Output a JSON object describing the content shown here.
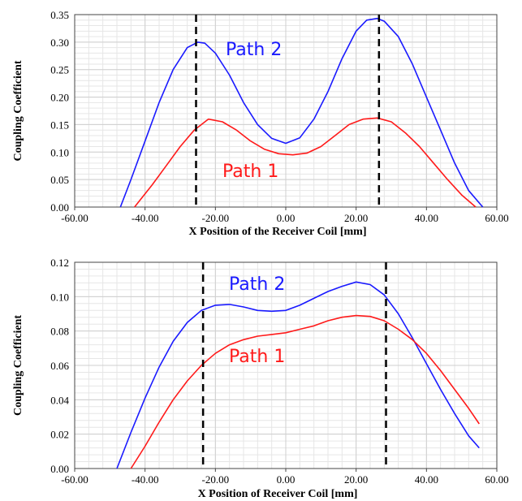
{
  "chart_data": [
    {
      "type": "line",
      "xlabel": "X Position of the Receiver Coil [mm]",
      "ylabel": "Coupling Coefficient",
      "xlim": [
        -60,
        60
      ],
      "ylim": [
        0,
        0.35
      ],
      "xticks": [
        "-60.00",
        "-40.00",
        "-20.00",
        "0.00",
        "20.00",
        "40.00",
        "60.00"
      ],
      "yticks": [
        "0.00",
        "0.05",
        "0.10",
        "0.15",
        "0.20",
        "0.25",
        "0.30",
        "0.35"
      ],
      "grid": true,
      "vlines": [
        -25.5,
        26.5
      ],
      "annotations": [
        {
          "text": "Path 2",
          "x": 0,
          "y": 0.335,
          "color": "#1a1aff"
        },
        {
          "text": "Path 1",
          "x": 0,
          "y": 0.07,
          "color": "#ff1a1a"
        }
      ],
      "series": [
        {
          "name": "Path 2",
          "color": "#1a1aff",
          "x": [
            -47,
            -44,
            -40,
            -36,
            -32,
            -28,
            -25,
            -23,
            -20,
            -16,
            -12,
            -8,
            -4,
            0,
            4,
            8,
            12,
            16,
            20,
            23,
            26,
            28,
            32,
            36,
            40,
            44,
            48,
            52,
            56
          ],
          "y": [
            0.0,
            0.05,
            0.12,
            0.19,
            0.25,
            0.29,
            0.3,
            0.298,
            0.28,
            0.24,
            0.19,
            0.15,
            0.125,
            0.116,
            0.126,
            0.16,
            0.21,
            0.27,
            0.32,
            0.34,
            0.343,
            0.338,
            0.31,
            0.26,
            0.2,
            0.14,
            0.08,
            0.03,
            0.0
          ]
        },
        {
          "name": "Path 1",
          "color": "#ff1a1a",
          "x": [
            -43,
            -38,
            -34,
            -30,
            -26,
            -22,
            -18,
            -14,
            -10,
            -6,
            -2,
            2,
            6,
            10,
            14,
            18,
            22,
            26,
            30,
            34,
            38,
            42,
            46,
            50,
            54
          ],
          "y": [
            0.0,
            0.04,
            0.075,
            0.11,
            0.14,
            0.16,
            0.155,
            0.14,
            0.12,
            0.105,
            0.097,
            0.095,
            0.098,
            0.11,
            0.13,
            0.15,
            0.16,
            0.162,
            0.155,
            0.135,
            0.11,
            0.08,
            0.05,
            0.022,
            0.0
          ]
        }
      ]
    },
    {
      "type": "line",
      "xlabel": "X Position of Receiver Coil [mm]",
      "ylabel": "Coupling Coefficient",
      "xlim": [
        -60,
        60
      ],
      "ylim": [
        0,
        0.12
      ],
      "xticks": [
        "-60.00",
        "-40.00",
        "-20.00",
        "0.00",
        "20.00",
        "40.00",
        "60.00"
      ],
      "yticks": [
        "0.00",
        "0.02",
        "0.04",
        "0.06",
        "0.08",
        "0.10",
        "0.12"
      ],
      "grid": true,
      "vlines": [
        -23.5,
        28.5
      ],
      "annotations": [
        {
          "text": "Path 2",
          "x": 0,
          "y": 0.1,
          "color": "#1a1aff"
        },
        {
          "text": "Path 1",
          "x": 0,
          "y": 0.061,
          "color": "#ff1a1a"
        }
      ],
      "series": [
        {
          "name": "Path 2",
          "color": "#1a1aff",
          "x": [
            -48,
            -44,
            -40,
            -36,
            -32,
            -28,
            -24,
            -20,
            -16,
            -12,
            -8,
            -4,
            0,
            4,
            8,
            12,
            16,
            20,
            24,
            28,
            32,
            36,
            40,
            44,
            48,
            52,
            55
          ],
          "y": [
            0.0,
            0.021,
            0.041,
            0.059,
            0.074,
            0.085,
            0.092,
            0.095,
            0.0955,
            0.094,
            0.092,
            0.0915,
            0.092,
            0.095,
            0.099,
            0.103,
            0.106,
            0.1085,
            0.107,
            0.101,
            0.09,
            0.076,
            0.061,
            0.046,
            0.032,
            0.019,
            0.012
          ]
        },
        {
          "name": "Path 1",
          "color": "#ff1a1a",
          "x": [
            -44,
            -40,
            -36,
            -32,
            -28,
            -24,
            -20,
            -16,
            -12,
            -8,
            -4,
            0,
            4,
            8,
            12,
            16,
            20,
            24,
            28,
            32,
            36,
            40,
            44,
            48,
            52,
            55
          ],
          "y": [
            0.0,
            0.013,
            0.027,
            0.04,
            0.051,
            0.06,
            0.067,
            0.072,
            0.075,
            0.077,
            0.078,
            0.079,
            0.081,
            0.083,
            0.086,
            0.088,
            0.089,
            0.0885,
            0.086,
            0.081,
            0.075,
            0.067,
            0.057,
            0.046,
            0.035,
            0.026
          ]
        }
      ]
    }
  ]
}
